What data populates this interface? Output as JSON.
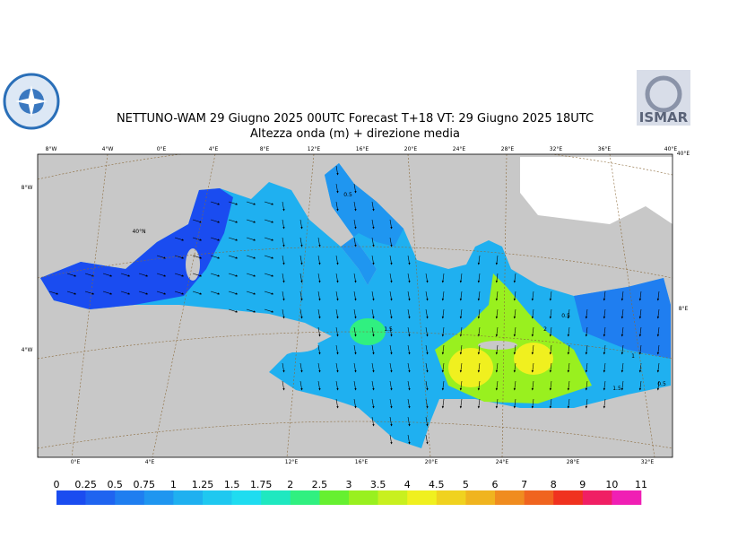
{
  "header": {
    "title": "NETTUNO-WAM  29   Giugno  2025 00UTC Forecast T+18 VT: 29   Giugno  2025 18UTC",
    "subtitle": "Altezza onda (m) + direzione media",
    "logo": "ISMAR"
  },
  "map": {
    "top_labels": [
      "8°W",
      "4°W",
      "0°E",
      "4°E",
      "8°E",
      "12°E",
      "16°E",
      "20°E",
      "24°E",
      "28°E",
      "32°E",
      "36°E",
      "40°E"
    ],
    "bottom_labels": [
      "0°E",
      "4°E",
      "12°E",
      "16°E",
      "20°E",
      "24°E",
      "28°E",
      "32°E"
    ],
    "left_labels": [
      "8°W",
      "40°N",
      "4°W"
    ],
    "right_labels": [
      "40°E",
      "8°E"
    ],
    "contour_labels": [
      "0.5",
      "1.5",
      "2",
      "0.5",
      "1",
      "1.5",
      "0.5"
    ]
  },
  "colorbar": {
    "ticks": [
      "0",
      "0.25",
      "0.5",
      "0.75",
      "1",
      "1.25",
      "1.5",
      "1.75",
      "2",
      "2.5",
      "3",
      "3.5",
      "4",
      "4.5",
      "5",
      "6",
      "7",
      "8",
      "9",
      "10",
      "11"
    ],
    "colors": [
      "#1a4cf0",
      "#1f64f0",
      "#1f7ef0",
      "#1f96f0",
      "#1fb0f0",
      "#1fc8f0",
      "#1fdcf0",
      "#1fe8c0",
      "#30f080",
      "#66f030",
      "#99f01f",
      "#c8f01f",
      "#f0f01f",
      "#f0d21f",
      "#f0b41f",
      "#f08c1f",
      "#f0641f",
      "#f0321f",
      "#f01f64",
      "#f01fb4"
    ]
  }
}
